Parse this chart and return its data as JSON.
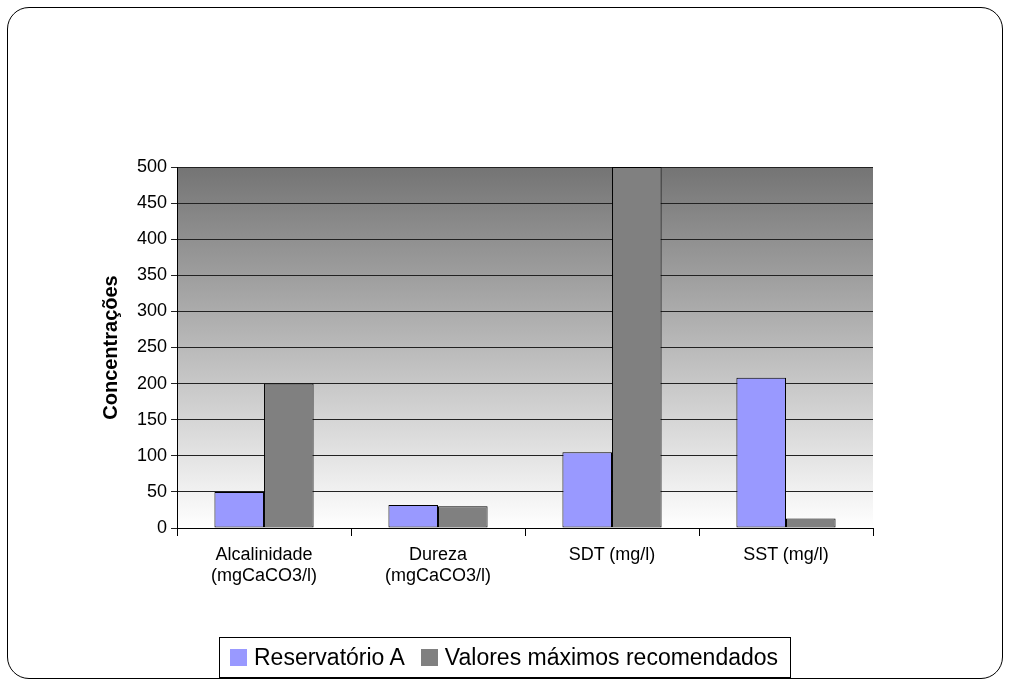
{
  "chart_data": {
    "type": "bar",
    "ylabel": "Concentrações",
    "categories": [
      "Alcalinidade (mgCaCO3/l)",
      "Dureza (mgCaCO3/l)",
      "SDT (mg/l)",
      "SST (mg/l)"
    ],
    "series": [
      {
        "name": "Reservatório A",
        "color": "#9999ff",
        "values": [
          50,
          32,
          105,
          208
        ]
      },
      {
        "name": "Valores máximos recomendados",
        "color": "#808080",
        "values": [
          200,
          30,
          500,
          13
        ]
      }
    ],
    "ylim": [
      0,
      500
    ],
    "yticks": [
      0,
      50,
      100,
      150,
      200,
      250,
      300,
      350,
      400,
      450,
      500
    ],
    "grid": "y",
    "legend": "bottom"
  }
}
